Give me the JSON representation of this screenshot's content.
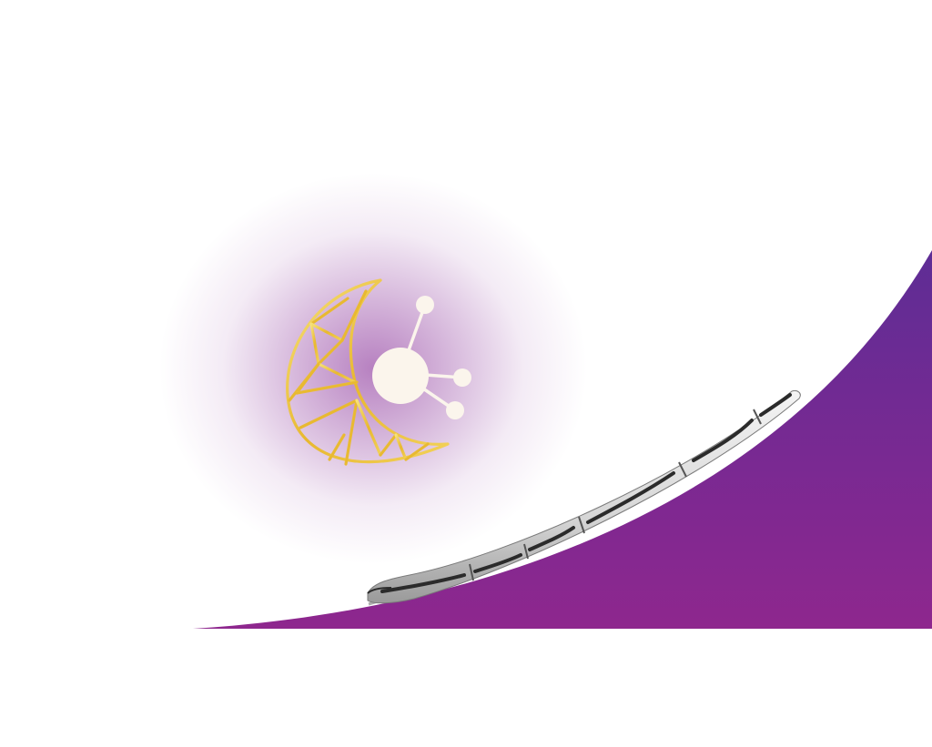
{
  "scene": {
    "background": "#ffffff",
    "hill": {
      "gradient_top": "#5E2D95",
      "gradient_mid": "#792992",
      "gradient_bottom": "#8E278E"
    },
    "glow": {
      "color": "#B37ABD"
    },
    "logo": {
      "crescent_icon": "crescent-moon-geometric-icon",
      "crescent_colors": [
        "#F6E27A",
        "#E8B830",
        "#F2D25A"
      ],
      "node_icon": "network-node-icon",
      "node_color": "#FBF5EC"
    },
    "train": {
      "icon": "high-speed-train-icon",
      "body_color": "#E2E2E2",
      "window_color": "#2B2B2B",
      "cars": 5
    }
  }
}
